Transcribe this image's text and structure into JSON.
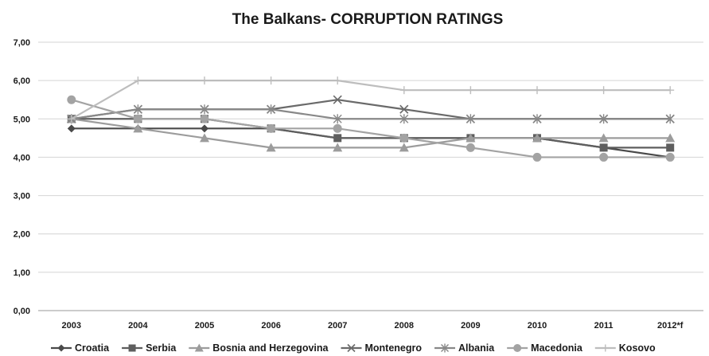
{
  "chart_data": {
    "type": "line",
    "title": "The Balkans- CORRUPTION RATINGS",
    "xlabel": "",
    "ylabel": "",
    "categories": [
      "2003",
      "2004",
      "2005",
      "2006",
      "2007",
      "2008",
      "2009",
      "2010",
      "2011",
      "2012*f"
    ],
    "y_ticks": [
      "0,00",
      "1,00",
      "2,00",
      "3,00",
      "4,00",
      "5,00",
      "6,00",
      "7,00"
    ],
    "ylim": [
      0,
      7
    ],
    "grid": true,
    "legend_position": "bottom",
    "series": [
      {
        "name": "Croatia",
        "color": "#4a4a4a",
        "marker": "diamond",
        "values": [
          4.75,
          4.75,
          4.75,
          4.75,
          4.5,
          4.5,
          4.5,
          4.5,
          4.25,
          4.0
        ]
      },
      {
        "name": "Serbia",
        "color": "#5e5e5e",
        "marker": "square",
        "values": [
          5.0,
          5.0,
          5.0,
          4.75,
          4.5,
          4.5,
          4.5,
          4.5,
          4.25,
          4.25
        ]
      },
      {
        "name": "Bosnia and Herzegovina",
        "color": "#9c9c9c",
        "marker": "triangle",
        "values": [
          5.0,
          4.75,
          4.5,
          4.25,
          4.25,
          4.25,
          4.5,
          4.5,
          4.5,
          4.5
        ]
      },
      {
        "name": "Montenegro",
        "color": "#6a6a6a",
        "marker": "x",
        "values": [
          5.0,
          5.25,
          5.25,
          5.25,
          5.5,
          5.25,
          5.0,
          5.0,
          5.0,
          5.0
        ]
      },
      {
        "name": "Albania",
        "color": "#888888",
        "marker": "star",
        "values": [
          5.0,
          5.25,
          5.25,
          5.25,
          5.0,
          5.0,
          5.0,
          5.0,
          5.0,
          5.0
        ]
      },
      {
        "name": "Macedonia",
        "color": "#a3a3a3",
        "marker": "circle",
        "values": [
          5.5,
          5.0,
          5.0,
          4.75,
          4.75,
          4.5,
          4.25,
          4.0,
          4.0,
          4.0
        ]
      },
      {
        "name": "Kosovo",
        "color": "#bdbdbd",
        "marker": "plus",
        "values": [
          5.0,
          6.0,
          6.0,
          6.0,
          6.0,
          5.75,
          5.75,
          5.75,
          5.75,
          5.75
        ]
      }
    ]
  }
}
